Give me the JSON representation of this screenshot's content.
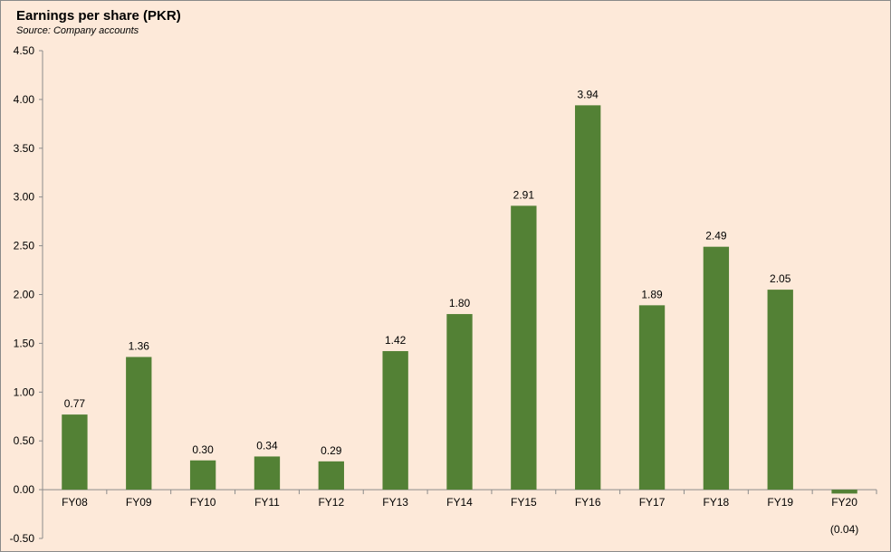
{
  "chart_data": {
    "type": "bar",
    "title": "Earnings per share (PKR)",
    "subtitle": "Source: Company accounts",
    "categories": [
      "FY08",
      "FY09",
      "FY10",
      "FY11",
      "FY12",
      "FY13",
      "FY14",
      "FY15",
      "FY16",
      "FY17",
      "FY18",
      "FY19",
      "FY20"
    ],
    "values": [
      0.77,
      1.36,
      0.3,
      0.34,
      0.29,
      1.42,
      1.8,
      2.91,
      3.94,
      1.89,
      2.49,
      2.05,
      -0.04
    ],
    "data_labels": [
      "0.77",
      "1.36",
      "0.30",
      "0.34",
      "0.29",
      "1.42",
      "1.80",
      "2.91",
      "3.94",
      "1.89",
      "2.49",
      "2.05",
      "(0.04)"
    ],
    "y_ticks": [
      "4.50",
      "4.00",
      "3.50",
      "3.00",
      "2.50",
      "2.00",
      "1.50",
      "1.00",
      "0.50",
      "0.00",
      "-0.50"
    ],
    "ylim": [
      -0.5,
      4.5
    ],
    "xlabel": "",
    "ylabel": "",
    "grid": false,
    "legend": "none",
    "colors": {
      "bar": "#538135",
      "background": "#fde9d9",
      "axis": "#8c8c8c"
    }
  }
}
